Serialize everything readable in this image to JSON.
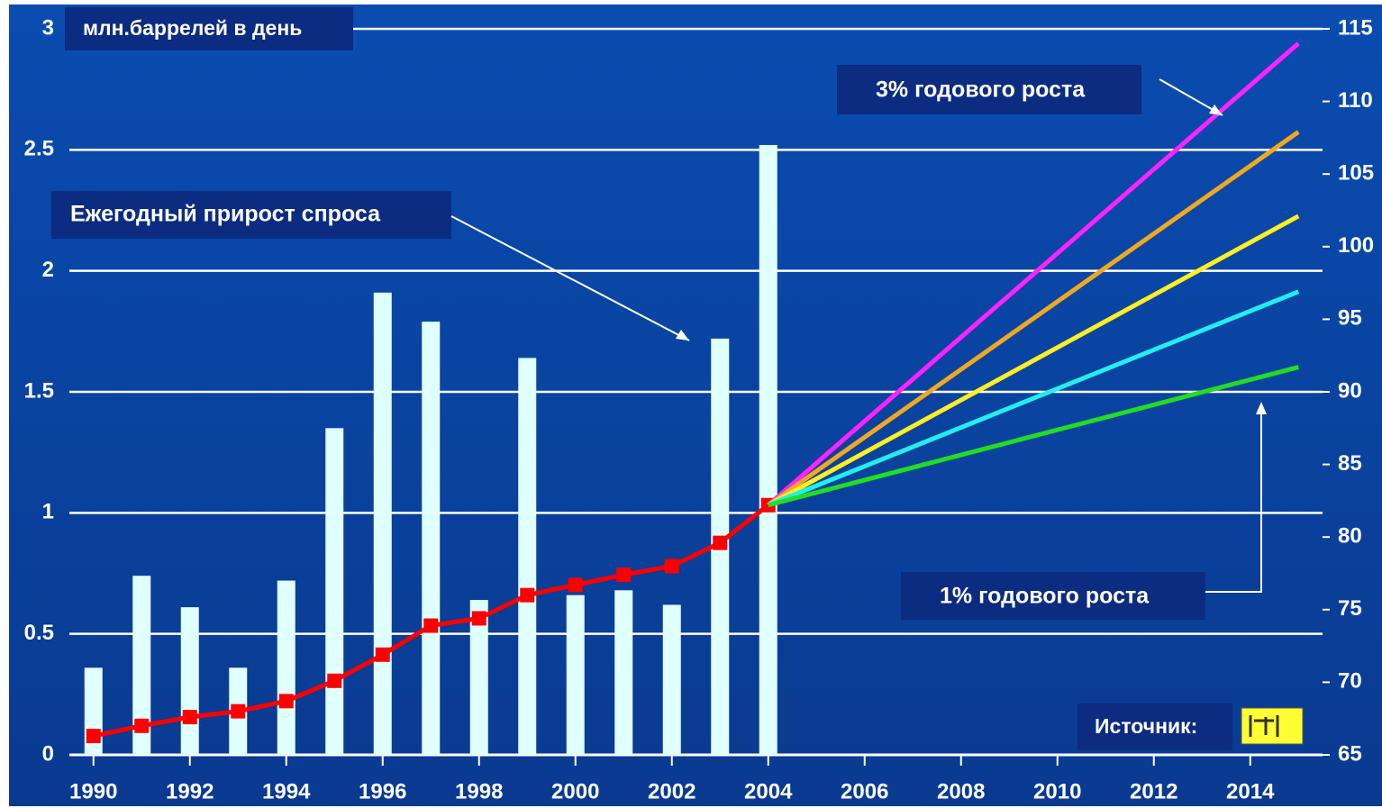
{
  "chart_data": {
    "type": "combo",
    "annotations": {
      "unit": "млн.баррелей в день",
      "demand": "Ежегодный прирост спроса",
      "high": "3% годового роста",
      "low": "1% годового роста",
      "source": "Источник:"
    },
    "xlim": [
      1989.5,
      2015.5
    ],
    "xticks": [
      1990,
      1992,
      1994,
      1996,
      1998,
      2000,
      2002,
      2004,
      2006,
      2008,
      2010,
      2012,
      2014
    ],
    "ylim": [
      0,
      3
    ],
    "yticks": [
      0,
      0.5,
      1,
      1.5,
      2,
      2.5,
      3
    ],
    "y2lim": [
      65,
      115
    ],
    "y2ticks": [
      65,
      70,
      75,
      80,
      85,
      90,
      95,
      100,
      105,
      110,
      115
    ],
    "grid": true,
    "series": [
      {
        "type": "bar",
        "color": "#e0ffff",
        "x": [
          1990,
          1991,
          1992,
          1993,
          1994,
          1995,
          1996,
          1997,
          1998,
          1999,
          2000,
          2001,
          2002,
          2003,
          2004
        ],
        "values": [
          0.36,
          0.74,
          0.61,
          0.36,
          0.72,
          1.35,
          1.91,
          1.79,
          0.64,
          1.64,
          0.66,
          0.68,
          0.62,
          1.72,
          2.52
        ]
      },
      {
        "type": "line",
        "axis": "y2",
        "color": "#ff0000",
        "markers": true,
        "x": [
          1990,
          1991,
          1992,
          1993,
          1994,
          1995,
          1996,
          1997,
          1998,
          1999,
          2000,
          2001,
          2002,
          2003,
          2004
        ],
        "values": [
          66.3,
          67.0,
          67.6,
          68.0,
          68.7,
          70.1,
          71.9,
          73.9,
          74.4,
          76.0,
          76.7,
          77.4,
          78.0,
          79.6,
          82.2
        ]
      },
      {
        "type": "line",
        "axis": "y2",
        "color": "#ff22ff",
        "x": [
          2004,
          2015
        ],
        "values": [
          82.2,
          114.0
        ]
      },
      {
        "type": "line",
        "axis": "y2",
        "color": "#f0a820",
        "x": [
          2004,
          2015
        ],
        "values": [
          82.2,
          107.9
        ]
      },
      {
        "type": "line",
        "axis": "y2",
        "color": "#ffee22",
        "x": [
          2004,
          2015
        ],
        "values": [
          82.2,
          102.1
        ]
      },
      {
        "type": "line",
        "axis": "y2",
        "color": "#22eeee",
        "x": [
          2004,
          2015
        ],
        "values": [
          82.2,
          96.9
        ]
      },
      {
        "type": "line",
        "axis": "y2",
        "color": "#22dd22",
        "x": [
          2004,
          2015
        ],
        "values": [
          82.2,
          91.7
        ]
      }
    ]
  }
}
